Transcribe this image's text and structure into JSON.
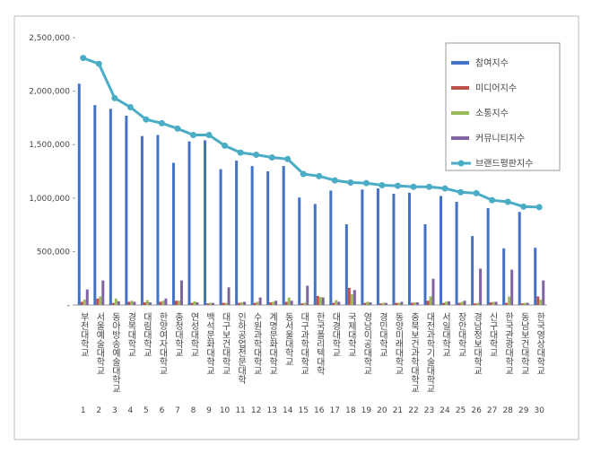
{
  "chart_data": {
    "type": "bar",
    "grid": false,
    "categories": [
      "부천대학교",
      "서울예술대학교",
      "동아방송예술대학교",
      "경복대학교",
      "대림대학교",
      "한양여자대학교",
      "충청대학교",
      "연성대학교",
      "백석문화대학교",
      "대구보건대학교",
      "인하공업전문대학",
      "수원과학대학교",
      "계명문화대학교",
      "동서울대학교",
      "대구과학대학교",
      "한국폴리텍대학",
      "대경대학교",
      "국제대학교",
      "영남이공대학교",
      "경민대학교",
      "동양미래대학교",
      "충북보건과학대학교",
      "대전과학기술대학교",
      "서일대학교",
      "장안대학교",
      "경남정보대학교",
      "신구대학교",
      "한국관광대학교",
      "동남보건대학교",
      "한국영상대학교"
    ],
    "ranks": [
      1,
      2,
      3,
      4,
      5,
      6,
      7,
      8,
      9,
      10,
      11,
      12,
      13,
      14,
      15,
      16,
      17,
      18,
      19,
      20,
      21,
      22,
      23,
      24,
      25,
      26,
      27,
      28,
      29,
      30
    ],
    "ylim": [
      0,
      2500000
    ],
    "yticks": [
      {
        "value": 0,
        "label": "-"
      },
      {
        "value": 500000,
        "label": "500,000"
      },
      {
        "value": 1000000,
        "label": "1,000,000"
      },
      {
        "value": 1500000,
        "label": "1,500,000"
      },
      {
        "value": 2000000,
        "label": "2,000,000"
      },
      {
        "value": 2500000,
        "label": "2,500,000"
      }
    ],
    "series": [
      {
        "name": "참여지수",
        "type": "bar",
        "color": "#4472c4",
        "values": [
          2070000,
          1870000,
          1835000,
          1770000,
          1580000,
          1590000,
          1330000,
          1530000,
          1540000,
          1270000,
          1350000,
          1300000,
          1250000,
          1300000,
          1005000,
          945000,
          1070000,
          755000,
          1080000,
          1090000,
          1040000,
          1050000,
          755000,
          1020000,
          965000,
          645000,
          905000,
          530000,
          870000,
          535000
        ]
      },
      {
        "name": "미디어지수",
        "type": "bar",
        "color": "#c0504d",
        "values": [
          30000,
          60000,
          20000,
          30000,
          25000,
          30000,
          40000,
          20000,
          15000,
          20000,
          20000,
          20000,
          25000,
          30000,
          15000,
          85000,
          20000,
          160000,
          20000,
          15000,
          20000,
          20000,
          40000,
          20000,
          20000,
          15000,
          25000,
          20000,
          15000,
          80000
        ]
      },
      {
        "name": "소통지수",
        "type": "bar",
        "color": "#9bbb59",
        "values": [
          50000,
          80000,
          60000,
          40000,
          45000,
          40000,
          40000,
          35000,
          20000,
          20000,
          25000,
          30000,
          30000,
          70000,
          20000,
          75000,
          45000,
          100000,
          30000,
          20000,
          20000,
          25000,
          80000,
          30000,
          30000,
          20000,
          30000,
          80000,
          20000,
          50000
        ]
      },
      {
        "name": "커뮤니티지수",
        "type": "bar",
        "color": "#8064a2",
        "values": [
          145000,
          230000,
          35000,
          30000,
          25000,
          60000,
          230000,
          25000,
          20000,
          165000,
          30000,
          70000,
          40000,
          40000,
          180000,
          70000,
          30000,
          140000,
          25000,
          20000,
          30000,
          25000,
          245000,
          35000,
          40000,
          340000,
          30000,
          330000,
          20000,
          230000
        ]
      },
      {
        "name": "브랜드평판지수",
        "type": "line",
        "color": "#4bacc6",
        "values": [
          2310000,
          2255000,
          1935000,
          1850000,
          1735000,
          1700000,
          1650000,
          1590000,
          1590000,
          1490000,
          1425000,
          1405000,
          1380000,
          1365000,
          1225000,
          1205000,
          1165000,
          1145000,
          1140000,
          1120000,
          1115000,
          1105000,
          1105000,
          1090000,
          1055000,
          1045000,
          980000,
          965000,
          920000,
          915000
        ]
      }
    ]
  }
}
